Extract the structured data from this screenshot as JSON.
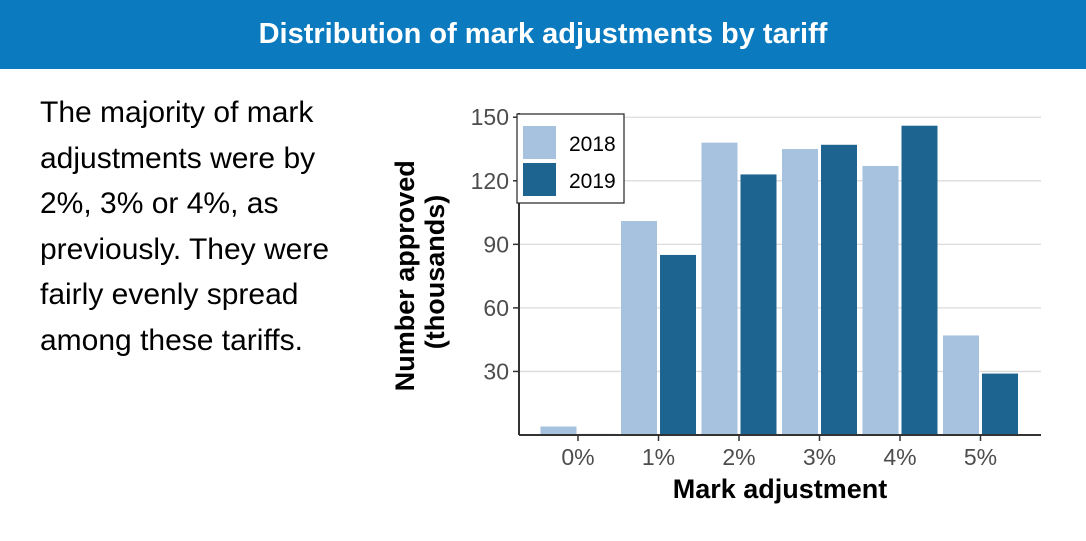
{
  "slide": {
    "title": "Distribution of mark adjustments by tariff",
    "body_text": "The majority of mark adjustments were by 2%, 3% or 4%, as previously. They were fairly evenly spread among these tariffs.",
    "title_bar_color": "#0b7abf"
  },
  "chart_data": {
    "type": "bar",
    "categories": [
      "0%",
      "1%",
      "2%",
      "3%",
      "4%",
      "5%"
    ],
    "series": [
      {
        "name": "2018",
        "color": "#a6c2de",
        "values": [
          4,
          101,
          138,
          135,
          127,
          47
        ]
      },
      {
        "name": "2019",
        "color": "#1e6491",
        "values": [
          0.5,
          85,
          123,
          137,
          146,
          29
        ]
      }
    ],
    "xlabel": "Mark adjustment",
    "ylabel": "Number approved (thousands)",
    "ylabel_lines": [
      "Number approved",
      "(thousands)"
    ],
    "yticks": [
      30,
      60,
      90,
      120,
      150
    ],
    "ylim": [
      0,
      152
    ],
    "grid": true,
    "legend_position": "top-left"
  }
}
